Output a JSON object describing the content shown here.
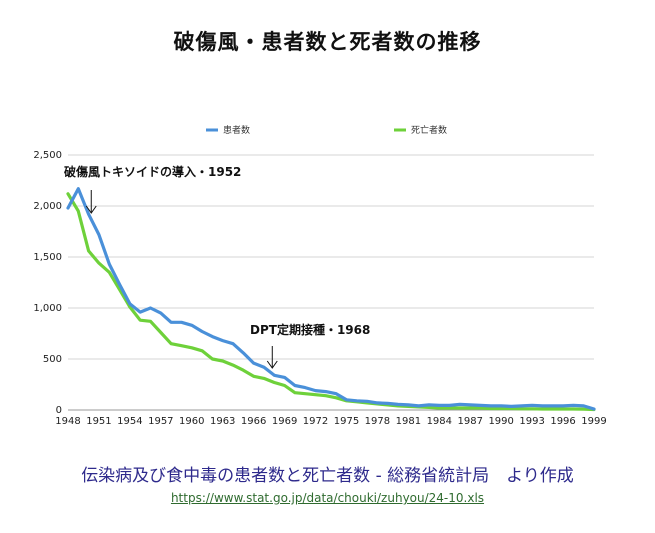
{
  "title": "破傷風・患者数と死者数の推移",
  "source_note": "伝染病及び食中毒の患者数と死亡者数 - 総務省統計局　より作成",
  "source_url": "https://www.stat.go.jp/data/chouki/zuhyou/24-10.xls",
  "chart_data": {
    "type": "line",
    "title": "破傷風・患者数と死者数の推移",
    "xlabel": "",
    "ylabel": "",
    "x": [
      1948,
      1949,
      1950,
      1951,
      1952,
      1953,
      1954,
      1955,
      1956,
      1957,
      1958,
      1959,
      1960,
      1961,
      1962,
      1963,
      1964,
      1965,
      1966,
      1967,
      1968,
      1969,
      1970,
      1971,
      1972,
      1973,
      1974,
      1975,
      1976,
      1977,
      1978,
      1979,
      1980,
      1981,
      1982,
      1983,
      1984,
      1985,
      1986,
      1987,
      1988,
      1989,
      1990,
      1991,
      1992,
      1993,
      1994,
      1995,
      1996,
      1997,
      1998,
      1999
    ],
    "x_ticks": [
      "1948",
      "1951",
      "1954",
      "1957",
      "1960",
      "1963",
      "1966",
      "1969",
      "1972",
      "1975",
      "1978",
      "1981",
      "1984",
      "1987",
      "1990",
      "1993",
      "1996",
      "1999"
    ],
    "y_ticks": [
      "0",
      "500",
      "1,000",
      "1,500",
      "2,000",
      "2,500"
    ],
    "ylim": [
      0,
      2500
    ],
    "grid": true,
    "legend_position": "top",
    "series": [
      {
        "name": "患者数",
        "color": "#4a90d9",
        "values": [
          1980,
          2170,
          1920,
          1720,
          1430,
          1230,
          1040,
          960,
          1000,
          950,
          860,
          860,
          830,
          770,
          720,
          680,
          650,
          560,
          460,
          420,
          340,
          320,
          240,
          220,
          190,
          180,
          160,
          100,
          90,
          85,
          70,
          65,
          55,
          50,
          40,
          50,
          45,
          45,
          55,
          50,
          45,
          40,
          40,
          35,
          40,
          45,
          40,
          40,
          40,
          45,
          40,
          10
        ]
      },
      {
        "name": "死亡者数",
        "color": "#6ed13a",
        "values": [
          2120,
          1950,
          1560,
          1440,
          1350,
          1180,
          1010,
          880,
          870,
          760,
          650,
          630,
          610,
          580,
          500,
          480,
          440,
          390,
          330,
          310,
          270,
          240,
          170,
          160,
          150,
          140,
          120,
          90,
          80,
          70,
          60,
          50,
          40,
          35,
          30,
          25,
          20,
          20,
          20,
          20,
          20,
          15,
          15,
          15,
          12,
          12,
          10,
          10,
          10,
          10,
          8,
          5
        ]
      }
    ],
    "annotations": [
      {
        "text": "破傷風トキソイドの導入・1952",
        "x": 1952,
        "y": 1930
      },
      {
        "text": "DPT定期接種・1968",
        "x": 1968,
        "y": 400
      }
    ]
  }
}
